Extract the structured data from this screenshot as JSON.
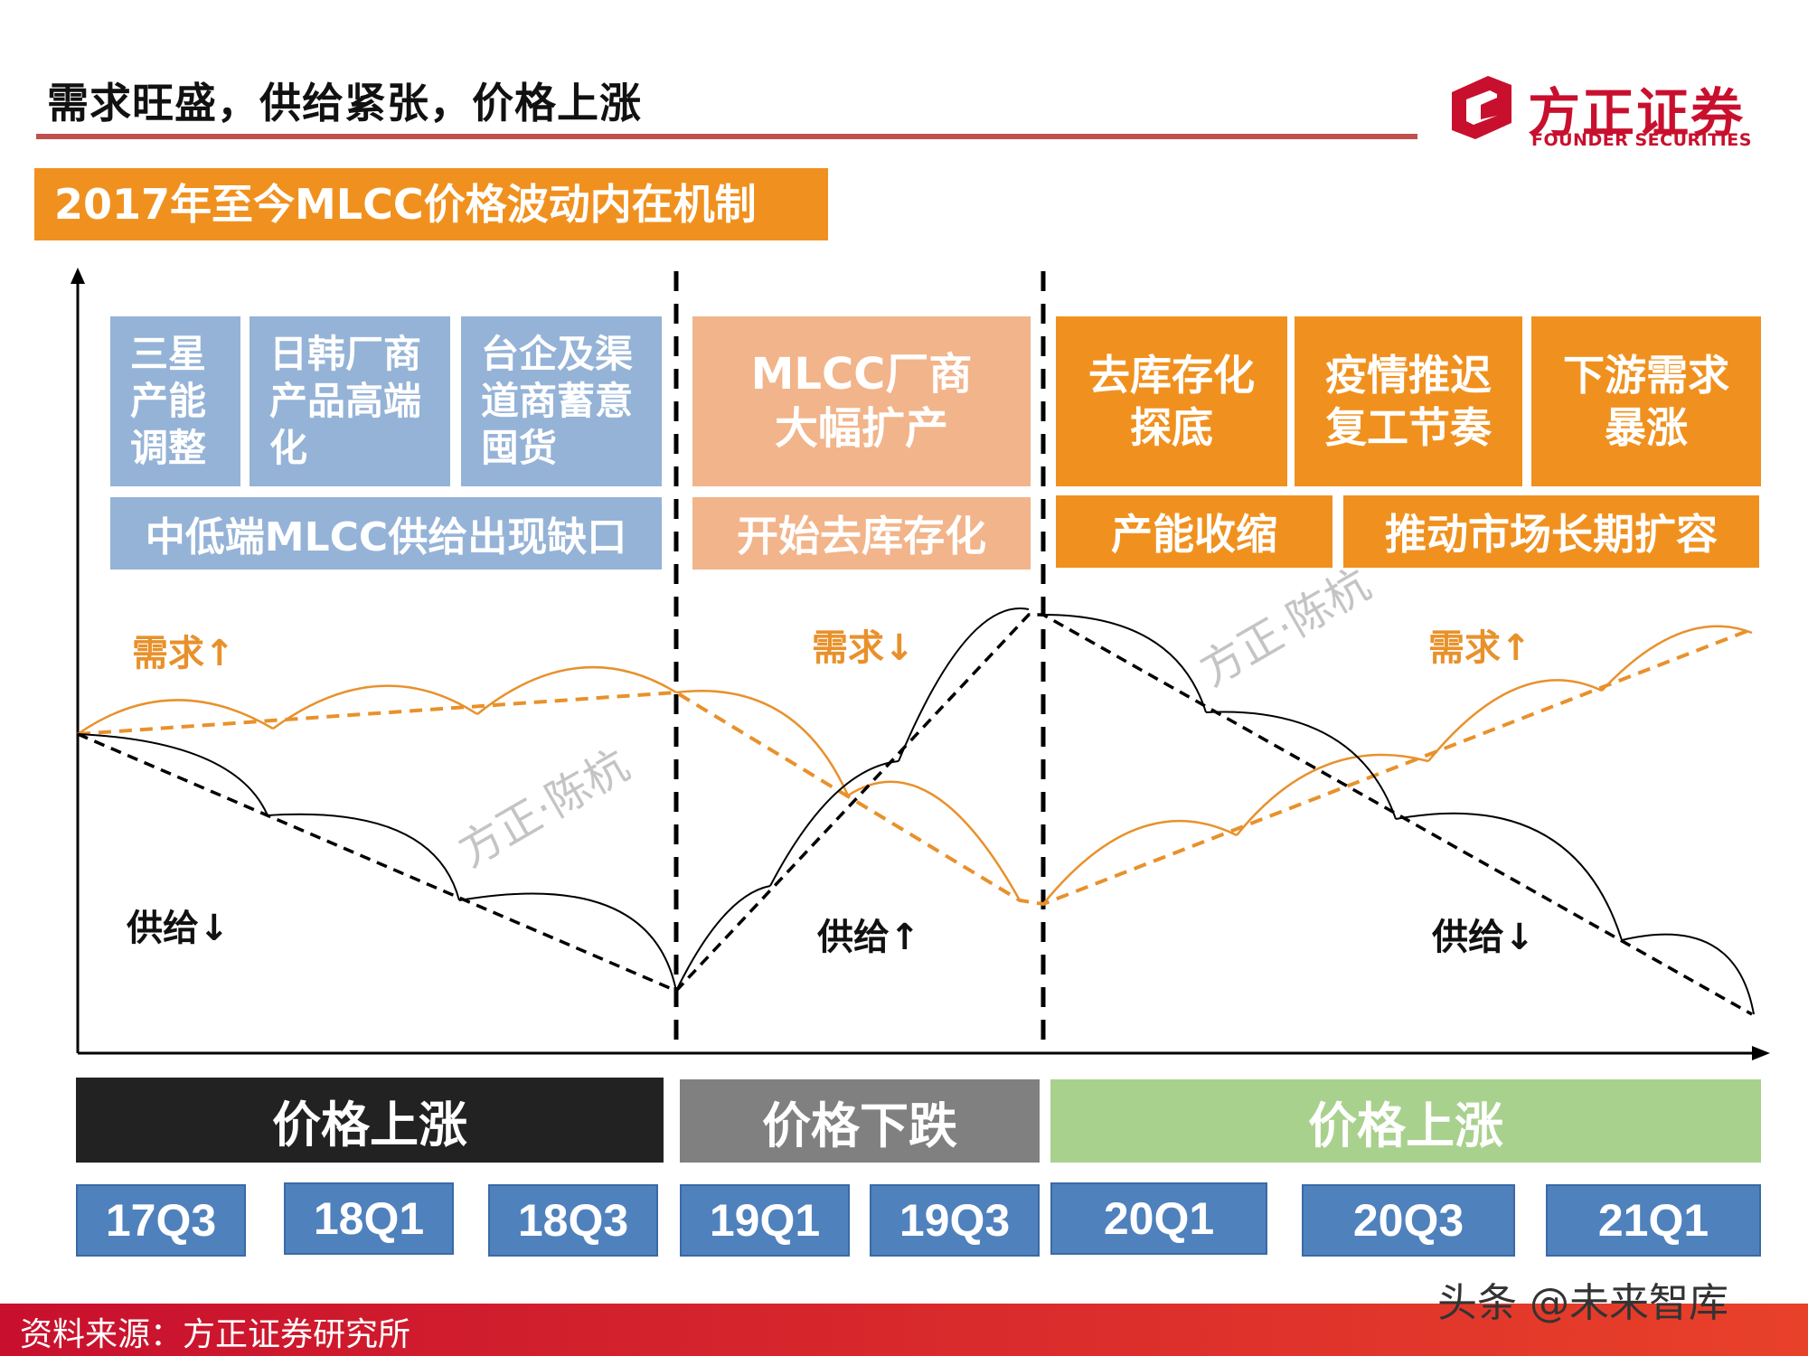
{
  "header": {
    "title": "需求旺盛，供给紧张，价格上涨",
    "logo_cn": "方正证券",
    "logo_en": "FOUNDER SECURITIES"
  },
  "subtitle": "2017年至今MLCC价格波动内在机制",
  "phase1": {
    "boxes": [
      "三星\n产能\n调整",
      "日韩厂商\n产品高端\n化",
      "台企及渠\n道商蓄意\n囤货"
    ],
    "summary": "中低端MLCC供给出现缺口",
    "demand_label": "需求↑",
    "supply_label": "供给↓",
    "price_label": "价格上涨"
  },
  "phase2": {
    "box": "MLCC厂商\n大幅扩产",
    "summary": "开始去库存化",
    "demand_label": "需求↓",
    "supply_label": "供给↑",
    "price_label": "价格下跌"
  },
  "phase3": {
    "boxes": [
      "去库存化\n探底",
      "疫情推迟\n复工节奏",
      "下游需求\n暴涨"
    ],
    "summaries": [
      "产能收缩",
      "推动市场长期扩容"
    ],
    "demand_label": "需求↑",
    "supply_label": "供给↓",
    "price_label": "价格上涨"
  },
  "quarters": [
    "17Q3",
    "18Q1",
    "18Q3",
    "19Q1",
    "19Q3",
    "20Q1",
    "20Q3",
    "21Q1"
  ],
  "watermark": "方正·陈杭",
  "footer": {
    "source": "资料来源：方正证券研究所",
    "site_watermark": "头条 @未来智库"
  },
  "colors": {
    "blue": "#95b3d7",
    "peach": "#f2b48a",
    "orange": "#f0911f",
    "quarter_blue": "#4f81bd",
    "black": "#222222",
    "gray": "#808080",
    "green": "#a9d18e",
    "red": "#c8102e",
    "demand_line": "#e8912b"
  }
}
